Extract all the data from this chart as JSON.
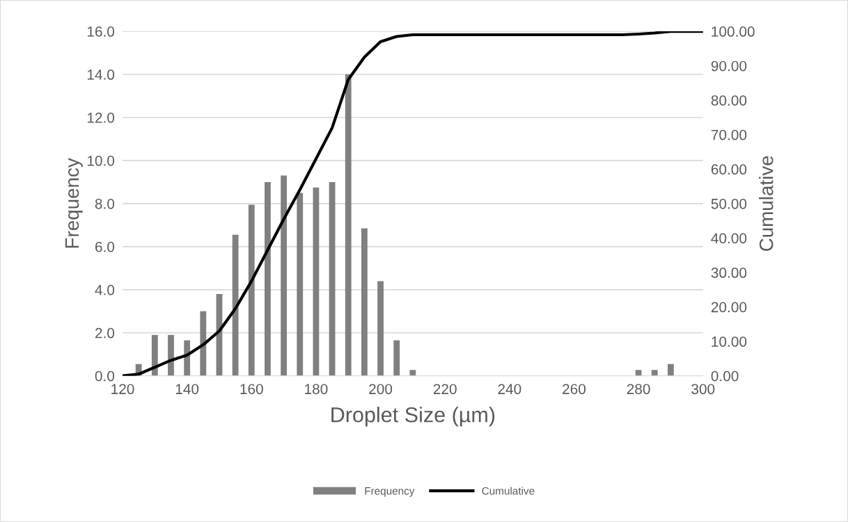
{
  "chart_data": {
    "type": "bar",
    "xlabel": "Droplet Size (µm)",
    "ylabel": "Frequency",
    "y2label": "Cumulative",
    "x": [
      120,
      125,
      130,
      135,
      140,
      145,
      150,
      155,
      160,
      165,
      170,
      175,
      180,
      185,
      190,
      195,
      200,
      205,
      210,
      215,
      220,
      225,
      230,
      235,
      240,
      245,
      250,
      255,
      260,
      265,
      270,
      275,
      280,
      285,
      290,
      295,
      300
    ],
    "series": [
      {
        "name": "Frequency",
        "color": "#808080",
        "values": [
          0,
          0.55,
          1.9,
          1.9,
          1.65,
          3.0,
          3.8,
          6.55,
          7.95,
          9.0,
          9.3,
          8.5,
          8.75,
          9.0,
          14.0,
          6.85,
          4.4,
          1.65,
          0.27,
          0,
          0,
          0,
          0,
          0,
          0,
          0,
          0,
          0,
          0,
          0,
          0,
          0,
          0.27,
          0.27,
          0.55,
          0,
          0
        ]
      },
      {
        "name": "Cumulative",
        "type": "line",
        "axis": "y2",
        "color": "#000000",
        "values": [
          0,
          0.5,
          2.5,
          4.5,
          6,
          9,
          13,
          19.5,
          27.5,
          36.5,
          45.5,
          54,
          63,
          72,
          86,
          92.5,
          97,
          98.5,
          99,
          99,
          99,
          99,
          99,
          99,
          99,
          99,
          99,
          99,
          99,
          99,
          99,
          99,
          99.2,
          99.5,
          100,
          100,
          100
        ]
      }
    ],
    "xlim": [
      120,
      300
    ],
    "xticks": [
      120,
      140,
      160,
      180,
      200,
      220,
      240,
      260,
      280,
      300
    ],
    "ylim": [
      0,
      16
    ],
    "yticks": [
      {
        "value": 0,
        "label": "0.0"
      },
      {
        "value": 2,
        "label": "2.0"
      },
      {
        "value": 4,
        "label": "4.0"
      },
      {
        "value": 6,
        "label": "6.0"
      },
      {
        "value": 8,
        "label": "8.0"
      },
      {
        "value": 10,
        "label": "10.0"
      },
      {
        "value": 12,
        "label": "12.0"
      },
      {
        "value": 14,
        "label": "14.0"
      },
      {
        "value": 16,
        "label": "16.0"
      }
    ],
    "y2lim": [
      0,
      100
    ],
    "y2ticks": [
      {
        "value": 0,
        "label": "0.00"
      },
      {
        "value": 10,
        "label": "10.00"
      },
      {
        "value": 20,
        "label": "20.00"
      },
      {
        "value": 30,
        "label": "30.00"
      },
      {
        "value": 40,
        "label": "40.00"
      },
      {
        "value": 50,
        "label": "50.00"
      },
      {
        "value": 60,
        "label": "60.00"
      },
      {
        "value": 70,
        "label": "70.00"
      },
      {
        "value": 80,
        "label": "80.00"
      },
      {
        "value": 90,
        "label": "90.00"
      },
      {
        "value": 100,
        "label": "100.00"
      }
    ],
    "grid": "y",
    "legend": "bottom"
  }
}
